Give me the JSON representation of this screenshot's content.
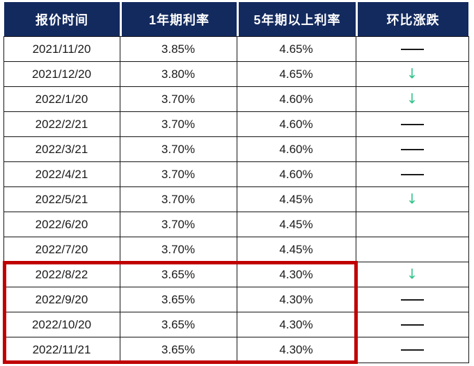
{
  "page": {
    "background": "#FFFFFF"
  },
  "colors": {
    "header_bg": "#132A5E",
    "header_text": "#FFFFFF",
    "grid_line": "#141414",
    "body_text": "#1A1A1A",
    "down_arrow_green": "#2EC387",
    "highlight_border_red": "#C00000"
  },
  "icons": {
    "down_arrow": "↓",
    "flat_dash": "——"
  },
  "table": {
    "headers": [
      "报价时间",
      "1年期利率",
      "5年期以上利率",
      "环比涨跌"
    ],
    "rows": [
      {
        "date": "2021/11/20",
        "one_year_rate": "3.85%",
        "five_plus_year_rate": "4.65%",
        "mom_change": "flat"
      },
      {
        "date": "2021/12/20",
        "one_year_rate": "3.80%",
        "five_plus_year_rate": "4.65%",
        "mom_change": "down"
      },
      {
        "date": "2022/1/20",
        "one_year_rate": "3.70%",
        "five_plus_year_rate": "4.60%",
        "mom_change": "down"
      },
      {
        "date": "2022/2/21",
        "one_year_rate": "3.70%",
        "five_plus_year_rate": "4.60%",
        "mom_change": "flat"
      },
      {
        "date": "2022/3/21",
        "one_year_rate": "3.70%",
        "five_plus_year_rate": "4.60%",
        "mom_change": "flat"
      },
      {
        "date": "2022/4/21",
        "one_year_rate": "3.70%",
        "five_plus_year_rate": "4.60%",
        "mom_change": "flat"
      },
      {
        "date": "2022/5/21",
        "one_year_rate": "3.70%",
        "five_plus_year_rate": "4.45%",
        "mom_change": "down"
      },
      {
        "date": "2022/6/20",
        "one_year_rate": "3.70%",
        "five_plus_year_rate": "4.45%",
        "mom_change": "none"
      },
      {
        "date": "2022/7/20",
        "one_year_rate": "3.70%",
        "five_plus_year_rate": "4.45%",
        "mom_change": "none"
      },
      {
        "date": "2022/8/22",
        "one_year_rate": "3.65%",
        "five_plus_year_rate": "4.30%",
        "mom_change": "down"
      },
      {
        "date": "2022/9/20",
        "one_year_rate": "3.65%",
        "five_plus_year_rate": "4.30%",
        "mom_change": "flat"
      },
      {
        "date": "2022/10/20",
        "one_year_rate": "3.65%",
        "five_plus_year_rate": "4.30%",
        "mom_change": "flat"
      },
      {
        "date": "2022/11/21",
        "one_year_rate": "3.65%",
        "five_plus_year_rate": "4.30%",
        "mom_change": "flat"
      }
    ]
  },
  "highlight_box": {
    "shape": "red-rectangle",
    "covers_rows": [
      "2022/8/22",
      "2022/9/20",
      "2022/10/20",
      "2022/11/21"
    ],
    "covers_columns": [
      "报价时间",
      "1年期利率",
      "5年期以上利率"
    ]
  }
}
